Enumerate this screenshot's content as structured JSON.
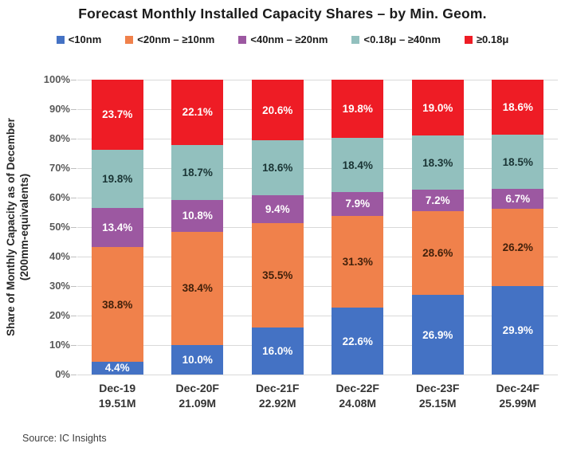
{
  "title": "Forecast Monthly Installed Capacity Shares – by Min. Geom.",
  "source": "Source:  IC Insights",
  "y_axis": {
    "label_line1": "Share of Monthly Capacity as of December",
    "label_line2": "(200mm-equivalents)",
    "ticks": [
      "100%",
      "90%",
      "80%",
      "70%",
      "60%",
      "50%",
      "40%",
      "30%",
      "20%",
      "10%",
      "0%"
    ]
  },
  "colors": {
    "gridline": "#d9d9d9",
    "tick_text": "#595959"
  },
  "chart_data": {
    "type": "bar",
    "stacked": true,
    "title": "Forecast Monthly Installed Capacity Shares – by Min. Geom.",
    "categories": [
      "Dec-19",
      "Dec-20F",
      "Dec-21F",
      "Dec-22F",
      "Dec-23F",
      "Dec-24F"
    ],
    "category_totals": [
      "19.51M",
      "21.09M",
      "22.92M",
      "24.08M",
      "25.15M",
      "25.99M"
    ],
    "series": [
      {
        "name": "<10nm",
        "color": "#4472C4",
        "label_color": "#ffffff",
        "values": [
          4.4,
          10.0,
          16.0,
          22.6,
          26.9,
          29.9
        ]
      },
      {
        "name": "<20nm – ≥10nm",
        "color": "#F0814B",
        "label_color": "#42210B",
        "values": [
          38.8,
          38.4,
          35.5,
          31.3,
          28.6,
          26.2
        ]
      },
      {
        "name": "<40nm – ≥20nm",
        "color": "#9C58A1",
        "label_color": "#ffffff",
        "values": [
          13.4,
          10.8,
          9.4,
          7.9,
          7.2,
          6.7
        ]
      },
      {
        "name": "<0.18μ – ≥40nm",
        "color": "#92C0BE",
        "label_color": "#1A3434",
        "values": [
          19.8,
          18.7,
          18.6,
          18.4,
          18.3,
          18.5
        ]
      },
      {
        "name": "≥0.18μ",
        "color": "#EE1C25",
        "label_color": "#ffffff",
        "values": [
          23.7,
          22.1,
          20.6,
          19.8,
          19.0,
          18.6
        ]
      }
    ],
    "ylabel": "Share of Monthly Capacity as of December (200mm-equivalents)",
    "ylim": [
      0,
      100
    ],
    "grid": true,
    "legend_position": "top"
  }
}
